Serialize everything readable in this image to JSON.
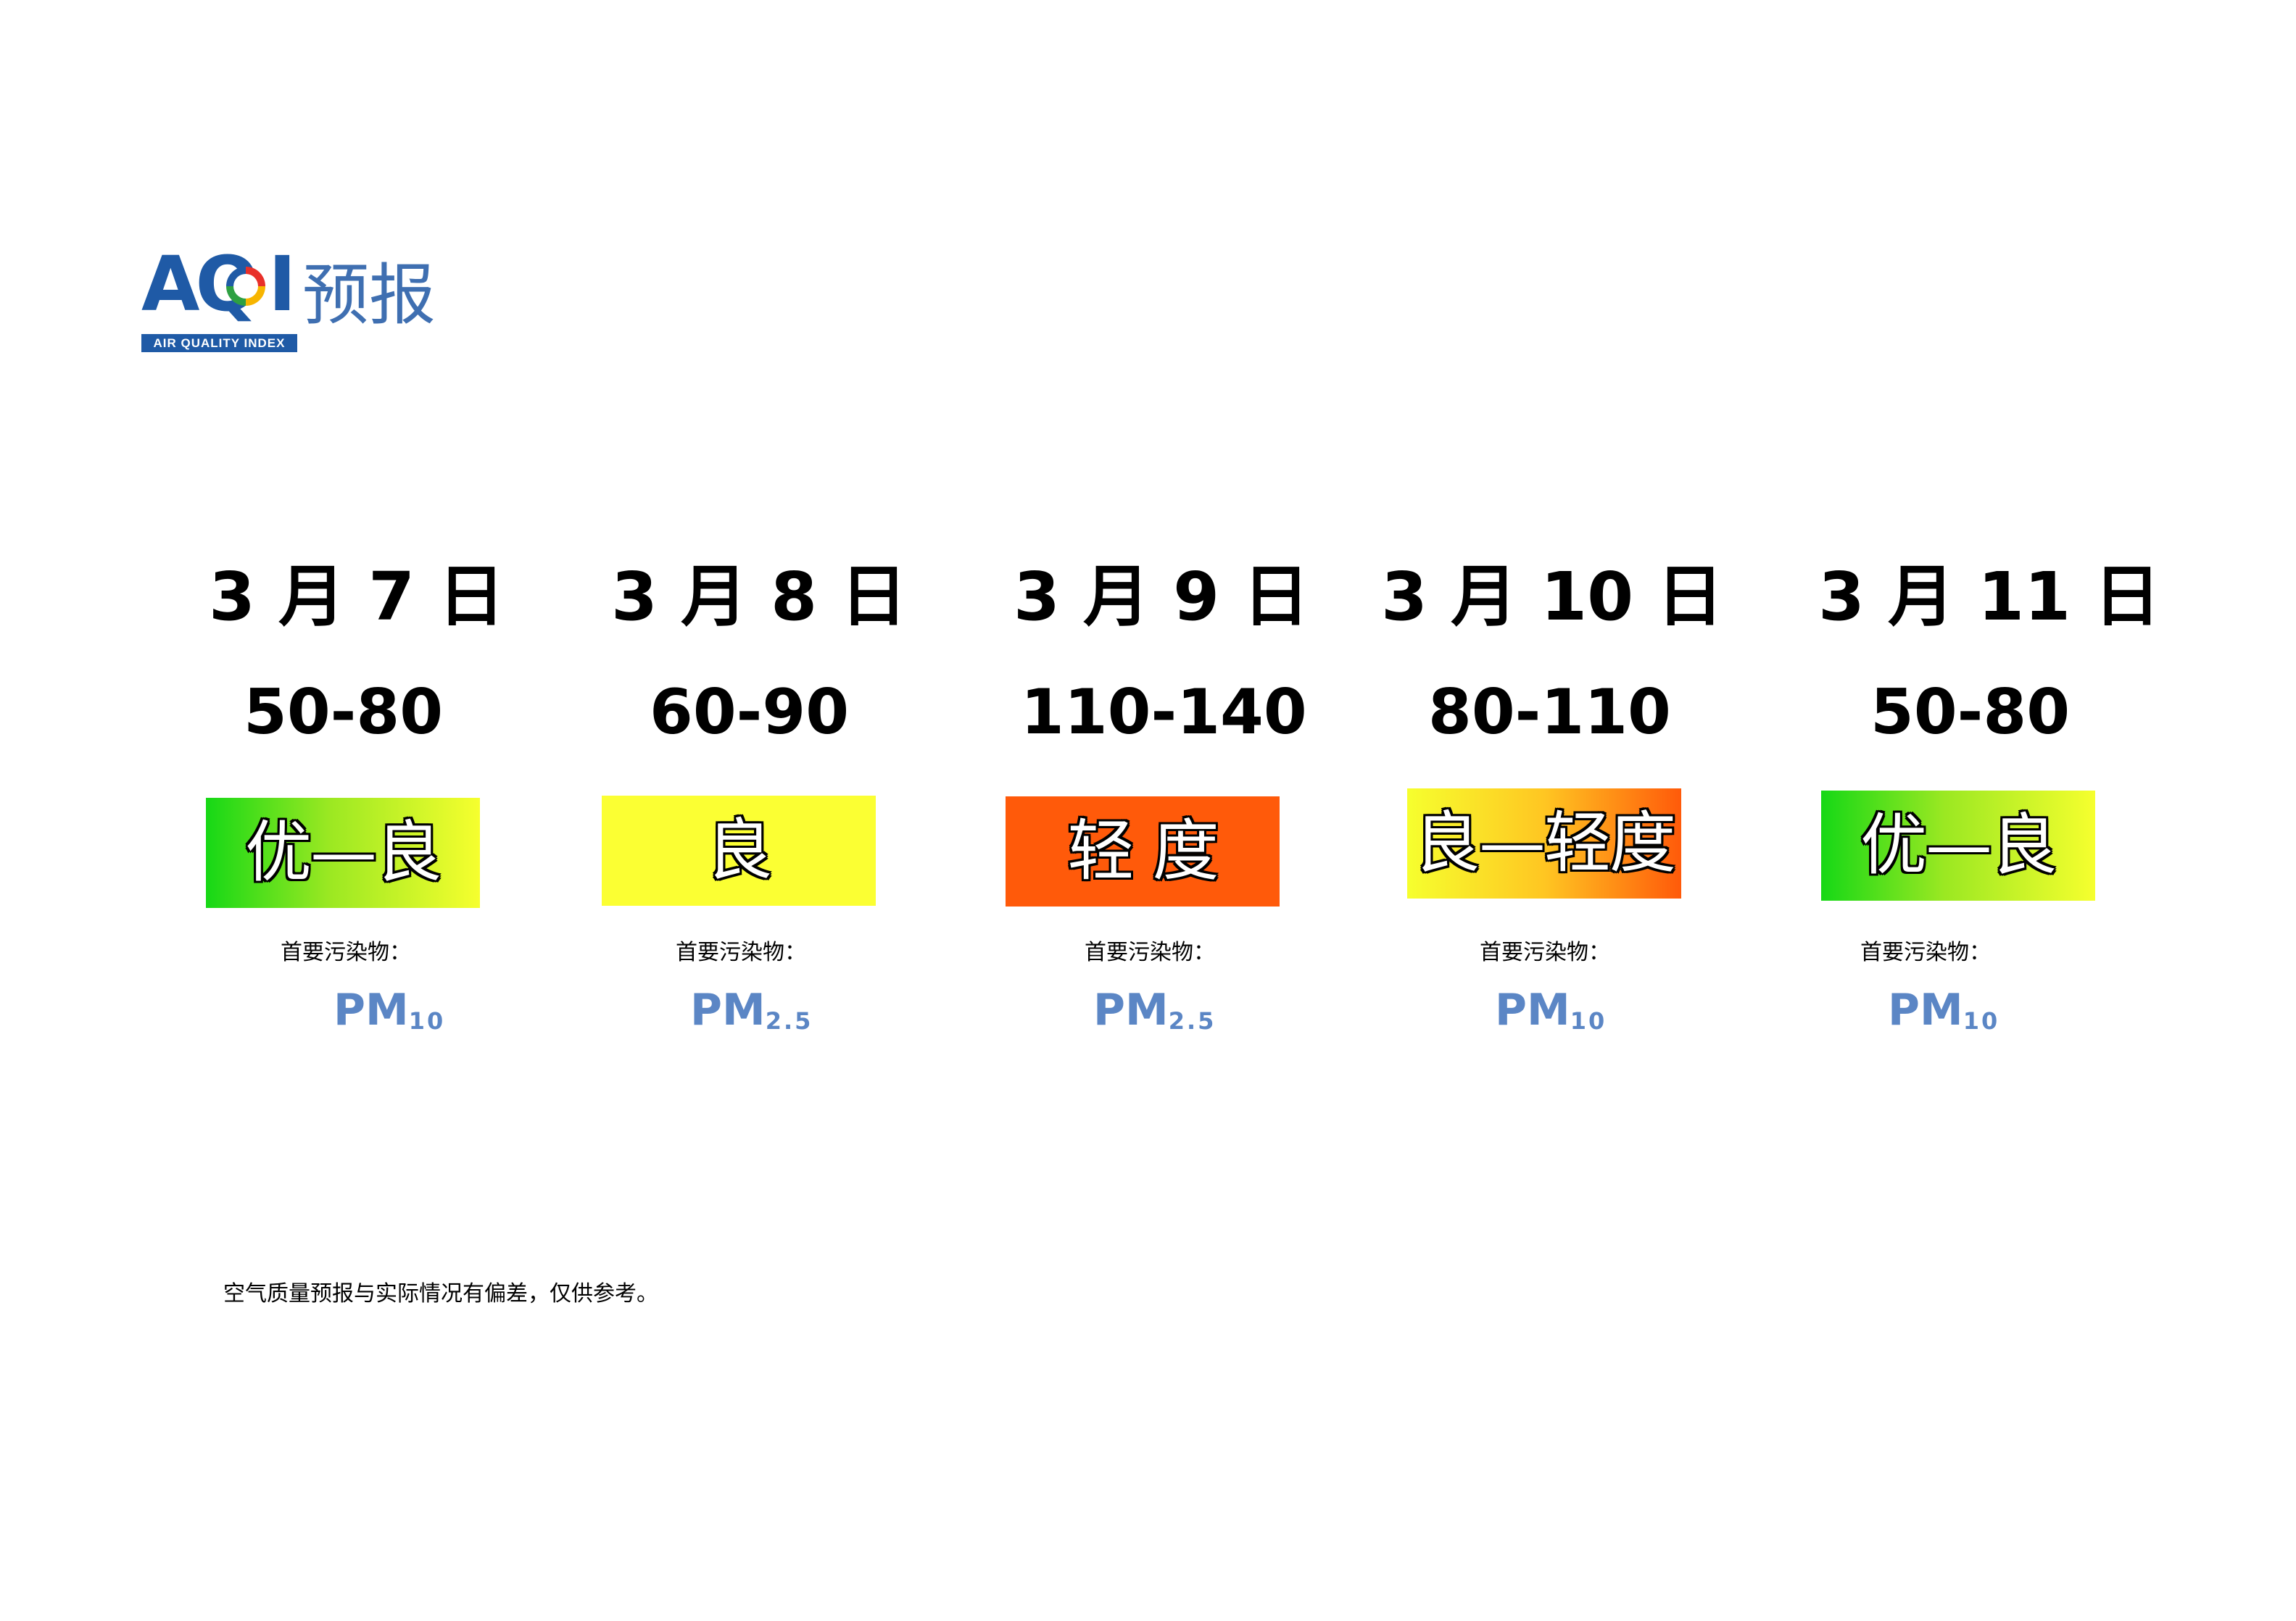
{
  "logo": {
    "mark_letters_aq": "AQ",
    "mark_letter_i": "I",
    "band_text": "AIR QUALITY INDEX",
    "suffix": "预报"
  },
  "days": [
    {
      "date": "3 月 7 日",
      "range": "50-80",
      "level": "优—良",
      "pollutant_label": "首要污染物：",
      "pollutant": "PM",
      "pollutant_sub": "10",
      "badge_colors": [
        "#16d816",
        "#f6ff2e"
      ]
    },
    {
      "date": "3 月 8 日",
      "range": "60-90",
      "level": "良",
      "pollutant_label": "首要污染物：",
      "pollutant": "PM",
      "pollutant_sub": "2.5",
      "badge_colors": [
        "#fbff33"
      ]
    },
    {
      "date": "3 月 9 日",
      "range": "110-140",
      "level": "轻 度",
      "pollutant_label": "首要污染物：",
      "pollutant": "PM",
      "pollutant_sub": "2.5",
      "badge_colors": [
        "#ff5a0a"
      ]
    },
    {
      "date": "3 月 10 日",
      "range": "80-110",
      "level": "良—轻度",
      "pollutant_label": "首要污染物：",
      "pollutant": "PM",
      "pollutant_sub": "10",
      "badge_colors": [
        "#f6ff2e",
        "#ff5a0a"
      ]
    },
    {
      "date": "3 月 11 日",
      "range": "50-80",
      "level": "优—良",
      "pollutant_label": "首要污染物：",
      "pollutant": "PM",
      "pollutant_sub": "10",
      "badge_colors": [
        "#16d816",
        "#f6ff2e"
      ]
    }
  ],
  "note": "空气质量预报与实际情况有偏差，仅供参考。"
}
